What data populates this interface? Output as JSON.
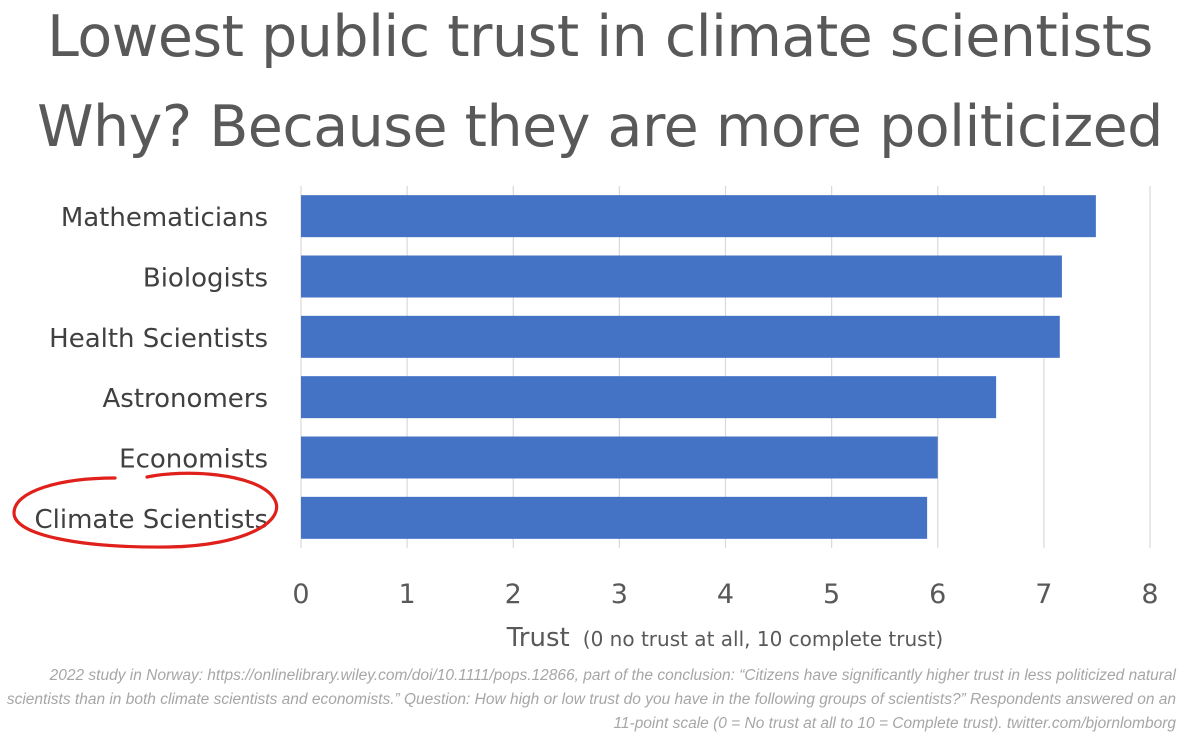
{
  "title": "Lowest public trust in climate scientists",
  "subtitle": "Why? Because they are more politicized",
  "source_note": "2022 study in Norway: https://onlinelibrary.wiley.com/doi/10.1111/pops.12866, part of the conclusion: “Citizens have significantly higher trust in less politicized natural scientists than in both climate scientists and economists.” Question: How high or low trust do you have in the following groups of scientists?” Respondents answered on an 11-point scale (0 = No trust at all to 10 = Complete trust). twitter.com/bjornlomborg",
  "chart_data": {
    "type": "bar",
    "orientation": "horizontal",
    "categories": [
      "Mathematicians",
      "Biologists",
      "Health Scientists",
      "Astronomers",
      "Economists",
      "Climate Scientists"
    ],
    "values": [
      7.49,
      7.17,
      7.15,
      6.55,
      6.0,
      5.9
    ],
    "xlabel": "Trust",
    "xlabel_note": "(0 no trust at all, 10 complete trust)",
    "xlim": [
      0,
      8
    ],
    "xticks": [
      "0",
      "1",
      "2",
      "3",
      "4",
      "5",
      "6",
      "7",
      "8"
    ],
    "grid": "vertical",
    "bar_color": "#4472c4",
    "highlight": {
      "category": "Climate Scientists",
      "style": "red hand-drawn circle",
      "color": "#e0201b"
    }
  }
}
